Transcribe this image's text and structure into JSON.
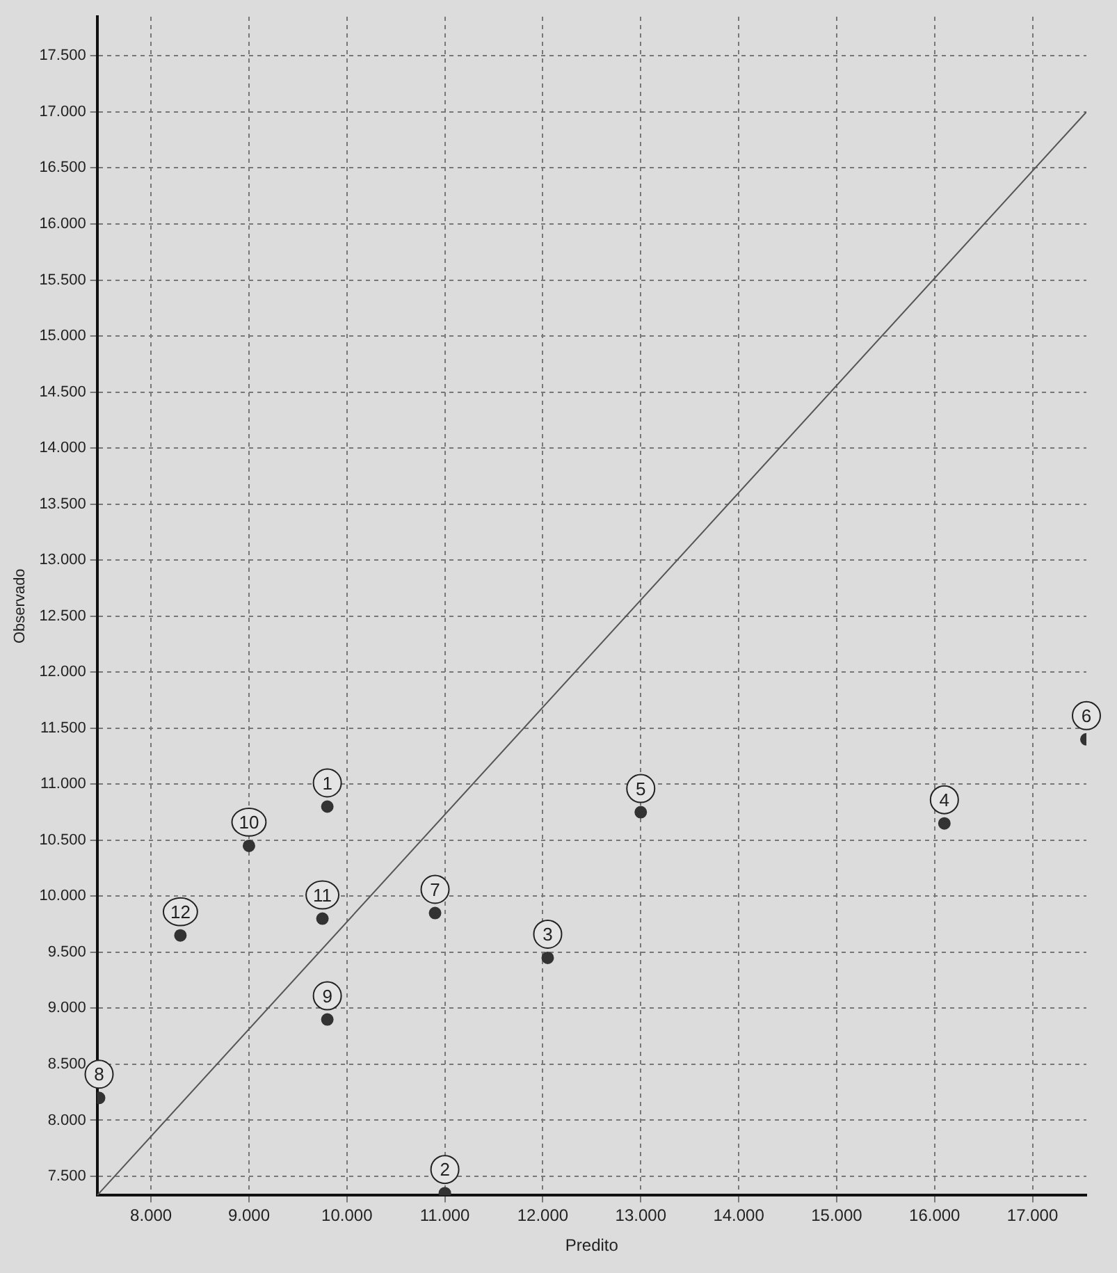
{
  "chart_data": {
    "type": "scatter",
    "xlabel": "Predito",
    "ylabel": "Observado",
    "xlim": [
      7450,
      17550
    ],
    "ylim": [
      7330,
      17850
    ],
    "xticks": [
      {
        "value": 8000,
        "label": "8.000"
      },
      {
        "value": 9000,
        "label": "9.000"
      },
      {
        "value": 10000,
        "label": "10.000"
      },
      {
        "value": 11000,
        "label": "11.000"
      },
      {
        "value": 12000,
        "label": "12.000"
      },
      {
        "value": 13000,
        "label": "13.000"
      },
      {
        "value": 14000,
        "label": "14.000"
      },
      {
        "value": 15000,
        "label": "15.000"
      },
      {
        "value": 16000,
        "label": "16.000"
      },
      {
        "value": 17000,
        "label": "17.000"
      }
    ],
    "yticks": [
      {
        "value": 7500,
        "label": "7.500"
      },
      {
        "value": 8000,
        "label": "8.000"
      },
      {
        "value": 8500,
        "label": "8.500"
      },
      {
        "value": 9000,
        "label": "9.000"
      },
      {
        "value": 9500,
        "label": "9.500"
      },
      {
        "value": 10000,
        "label": "10.000"
      },
      {
        "value": 10500,
        "label": "10.500"
      },
      {
        "value": 11000,
        "label": "11.000"
      },
      {
        "value": 11500,
        "label": "11.500"
      },
      {
        "value": 12000,
        "label": "12.000"
      },
      {
        "value": 12500,
        "label": "12.500"
      },
      {
        "value": 13000,
        "label": "13.000"
      },
      {
        "value": 13500,
        "label": "13.500"
      },
      {
        "value": 14000,
        "label": "14.000"
      },
      {
        "value": 14500,
        "label": "14.500"
      },
      {
        "value": 15000,
        "label": "15.000"
      },
      {
        "value": 15500,
        "label": "15.500"
      },
      {
        "value": 16000,
        "label": "16.000"
      },
      {
        "value": 16500,
        "label": "16.500"
      },
      {
        "value": 17000,
        "label": "17.000"
      },
      {
        "value": 17500,
        "label": "17.500"
      }
    ],
    "grid": true,
    "legend": false,
    "marker": "circle",
    "series": [
      {
        "type": "line",
        "color": "#555555",
        "x": [
          7450,
          17550
        ],
        "values": [
          7330,
          17000
        ],
        "marker": "none"
      },
      {
        "color": "#333333",
        "x": [
          9800,
          11000,
          12050,
          16100,
          13000,
          17550,
          10900,
          7470,
          9800,
          9000,
          9750,
          8300
        ],
        "values": [
          10800,
          7350,
          9450,
          10650,
          10750,
          11400,
          9850,
          8200,
          8900,
          10450,
          9800,
          9650
        ]
      }
    ],
    "annotations": [
      {
        "text": "1",
        "x": 9800,
        "y": 10800
      },
      {
        "text": "2",
        "x": 11000,
        "y": 7350
      },
      {
        "text": "3",
        "x": 12050,
        "y": 9450
      },
      {
        "text": "4",
        "x": 16100,
        "y": 10650
      },
      {
        "text": "5",
        "x": 13000,
        "y": 10750
      },
      {
        "text": "6",
        "x": 17550,
        "y": 11400
      },
      {
        "text": "7",
        "x": 10900,
        "y": 9850
      },
      {
        "text": "8",
        "x": 7470,
        "y": 8200
      },
      {
        "text": "9",
        "x": 9800,
        "y": 8900
      },
      {
        "text": "10",
        "x": 9000,
        "y": 10450
      },
      {
        "text": "11",
        "x": 9750,
        "y": 9800
      },
      {
        "text": "12",
        "x": 8300,
        "y": 9650
      }
    ]
  }
}
